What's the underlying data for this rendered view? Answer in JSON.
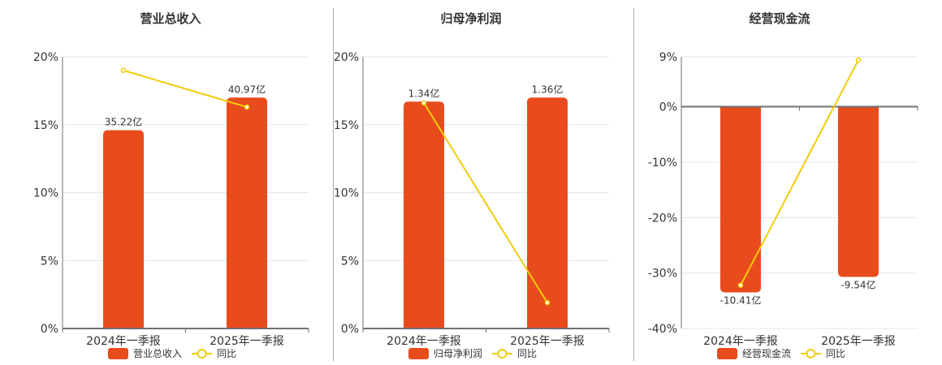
{
  "colors": {
    "bar": "#E84C1C",
    "line": "#F2CC0C",
    "grid": "#E0E6F0",
    "axis": "#6E7079",
    "divider": "#AAAAAA"
  },
  "chart_data": [
    {
      "type": "bar+line",
      "title": "营业总收入",
      "categories": [
        "2024年一季报",
        "2025年一季报"
      ],
      "series": [
        {
          "name": "营业总收入",
          "type": "bar",
          "labels": [
            "35.22亿",
            "40.97亿"
          ],
          "values_yi": [
            35.22,
            40.97
          ],
          "bar_height_pct_axis": [
            14.6,
            17.0
          ]
        },
        {
          "name": "同比",
          "type": "line",
          "values": [
            19.0,
            16.3
          ],
          "unit": "%"
        }
      ],
      "yaxis": {
        "ticks": [
          "0%",
          "5%",
          "10%",
          "15%",
          "20%"
        ],
        "min": 0,
        "max": 20
      },
      "legend": [
        "营业总收入",
        "同比"
      ],
      "legend_position": "bottom",
      "grid": true
    },
    {
      "type": "bar+line",
      "title": "归母净利润",
      "categories": [
        "2024年一季报",
        "2025年一季报"
      ],
      "series": [
        {
          "name": "归母净利润",
          "type": "bar",
          "labels": [
            "1.34亿",
            "1.36亿"
          ],
          "values_yi": [
            1.34,
            1.36
          ],
          "bar_height_pct_axis": [
            16.7,
            17.0
          ]
        },
        {
          "name": "同比",
          "type": "line",
          "values": [
            16.6,
            1.9
          ],
          "unit": "%"
        }
      ],
      "yaxis": {
        "ticks": [
          "0%",
          "5%",
          "10%",
          "15%",
          "20%"
        ],
        "min": 0,
        "max": 20
      },
      "legend": [
        "归母净利润",
        "同比"
      ],
      "legend_position": "bottom",
      "grid": true
    },
    {
      "type": "bar+line",
      "title": "经营现金流",
      "categories": [
        "2024年一季报",
        "2025年一季报"
      ],
      "series": [
        {
          "name": "经营现金流",
          "type": "bar",
          "labels": [
            "-10.41亿",
            "-9.54亿"
          ],
          "values_yi": [
            -10.41,
            -9.54
          ],
          "bar_height_pct_axis": [
            -33.5,
            -30.7
          ]
        },
        {
          "name": "同比",
          "type": "line",
          "values": [
            -32.2,
            8.4
          ],
          "unit": "%"
        }
      ],
      "yaxis": {
        "ticks": [
          "-40%",
          "-30%",
          "-20%",
          "-10%",
          "0%",
          "9%"
        ],
        "min": -40,
        "max": 9
      },
      "legend": [
        "经营现金流",
        "同比"
      ],
      "legend_position": "bottom",
      "grid": true
    }
  ]
}
